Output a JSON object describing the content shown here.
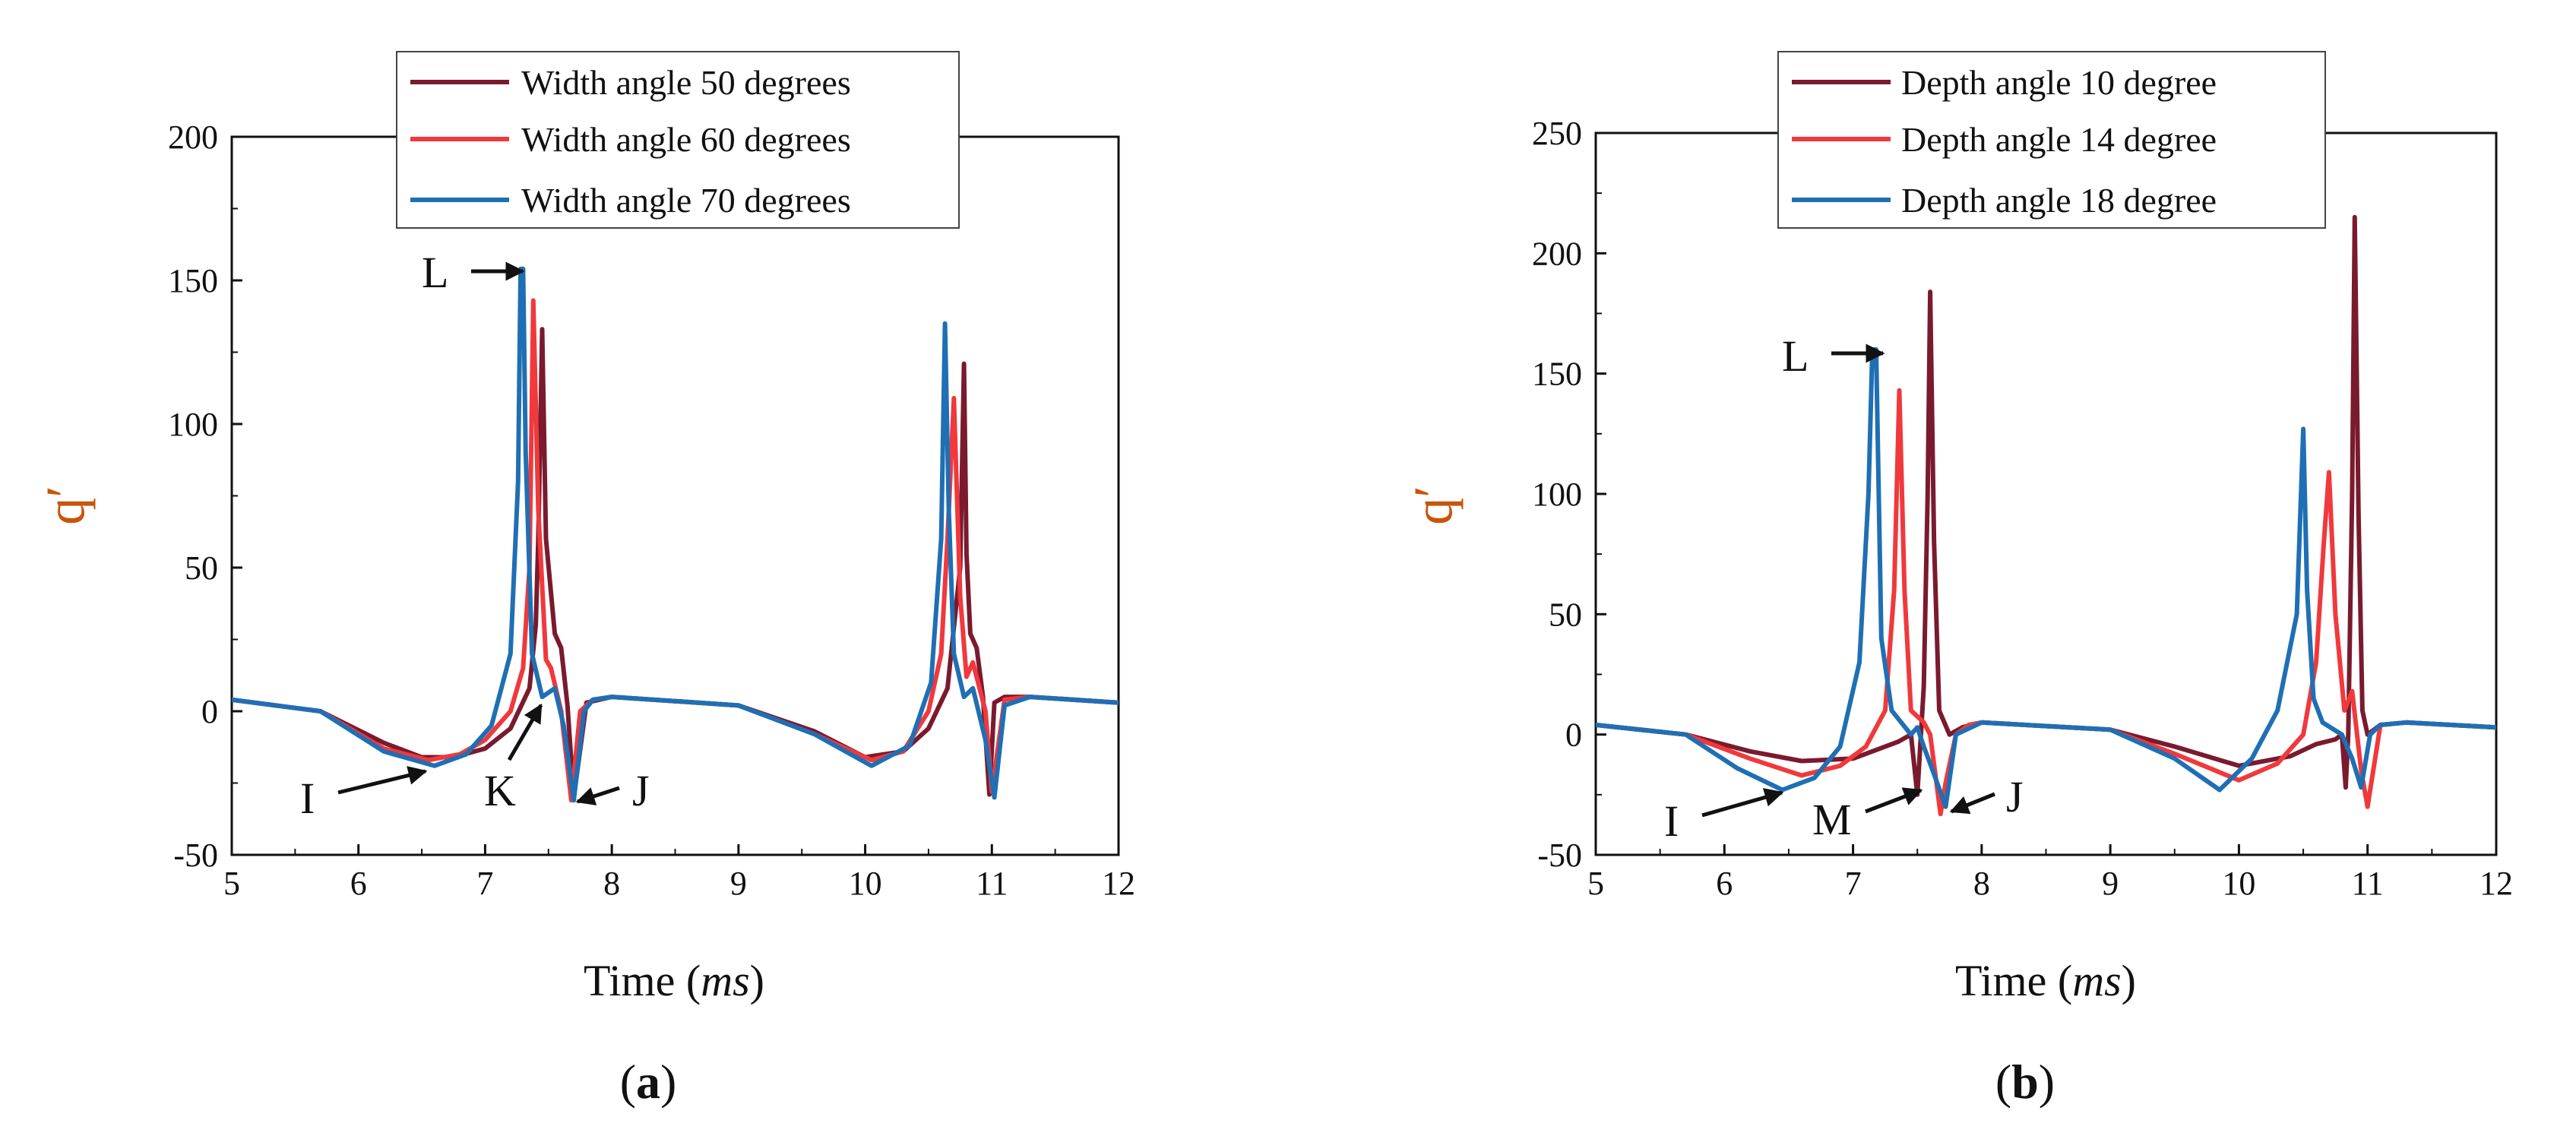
{
  "colors": {
    "dark_red": "#7a1a2e",
    "red": "#f0393c",
    "blue": "#1f6fb4",
    "ylabel": "#c8550a"
  },
  "chart_data": [
    {
      "type": "line",
      "panel_label_open": "(",
      "panel_label_letter": "a",
      "panel_label_close": ")",
      "xlabel_main": "Time (",
      "xlabel_italic": "ms",
      "xlabel_close": ")",
      "ylabel": "q′",
      "xlim": [
        5,
        12
      ],
      "ylim": [
        -50,
        200
      ],
      "xticks": [
        5,
        6,
        7,
        8,
        9,
        10,
        11,
        12
      ],
      "yticks": [
        -50,
        0,
        50,
        100,
        150,
        200
      ],
      "legend_position": "top-center",
      "series": [
        {
          "name": "Width angle 50 degrees",
          "color": "#7a1a2e",
          "x": [
            5,
            5.7,
            6.2,
            6.5,
            6.75,
            7.0,
            7.2,
            7.35,
            7.4,
            7.42,
            7.45,
            7.48,
            7.55,
            7.6,
            7.65,
            7.7,
            7.8,
            8.0,
            9.0,
            9.6,
            10.0,
            10.3,
            10.5,
            10.65,
            10.75,
            10.78,
            10.8,
            10.83,
            10.88,
            10.93,
            10.98,
            11.02,
            11.1,
            11.3,
            12
          ],
          "y": [
            4,
            0,
            -11,
            -16,
            -16,
            -13,
            -6,
            8,
            30,
            60,
            133,
            60,
            27,
            22,
            2,
            -30,
            3,
            5,
            2,
            -7,
            -16,
            -14,
            -6,
            8,
            50,
            121,
            55,
            27,
            22,
            5,
            -29,
            3,
            5,
            5,
            3
          ]
        },
        {
          "name": "Width angle 60 degrees",
          "color": "#f0393c",
          "x": [
            5,
            5.7,
            6.2,
            6.55,
            6.8,
            7.0,
            7.2,
            7.3,
            7.35,
            7.38,
            7.42,
            7.48,
            7.52,
            7.6,
            7.68,
            7.75,
            7.85,
            8.0,
            9.0,
            9.6,
            10.05,
            10.3,
            10.5,
            10.6,
            10.65,
            10.7,
            10.75,
            10.8,
            10.85,
            10.95,
            11.0,
            11.1,
            11.3,
            12
          ],
          "y": [
            4,
            0,
            -13,
            -17,
            -15,
            -10,
            0,
            15,
            50,
            143,
            70,
            18,
            15,
            0,
            -31,
            0,
            4,
            5,
            2,
            -8,
            -17,
            -14,
            0,
            20,
            60,
            109,
            40,
            12,
            17,
            0,
            -28,
            4,
            5,
            3
          ]
        },
        {
          "name": "Width angle 70 degrees",
          "color": "#1f6fb4",
          "x": [
            5,
            5.7,
            6.2,
            6.6,
            6.85,
            7.05,
            7.2,
            7.26,
            7.28,
            7.3,
            7.32,
            7.37,
            7.45,
            7.55,
            7.62,
            7.7,
            7.78,
            7.85,
            8.0,
            9.0,
            9.6,
            10.05,
            10.35,
            10.52,
            10.6,
            10.63,
            10.66,
            10.7,
            10.78,
            10.85,
            10.95,
            11.02,
            11.1,
            11.3,
            12
          ],
          "y": [
            4,
            0,
            -14,
            -19,
            -15,
            -5,
            20,
            80,
            154,
            154,
            90,
            20,
            5,
            8,
            -5,
            -31,
            0,
            4,
            5,
            2,
            -8,
            -19,
            -12,
            10,
            60,
            135,
            70,
            20,
            5,
            8,
            -10,
            -30,
            2,
            5,
            3
          ]
        }
      ],
      "annotations": [
        {
          "label": "L"
        },
        {
          "label": "I"
        },
        {
          "label": "K"
        },
        {
          "label": "J"
        }
      ]
    },
    {
      "type": "line",
      "panel_label_open": "(",
      "panel_label_letter": "b",
      "panel_label_close": ")",
      "xlabel_main": "Time (",
      "xlabel_italic": "ms",
      "xlabel_close": ")",
      "ylabel": "q′",
      "xlim": [
        5,
        12
      ],
      "ylim": [
        -50,
        250
      ],
      "xticks": [
        5,
        6,
        7,
        8,
        9,
        10,
        11,
        12
      ],
      "yticks": [
        -50,
        0,
        50,
        100,
        150,
        200,
        250
      ],
      "legend_position": "top-center",
      "series": [
        {
          "name": "Depth angle 10 degree",
          "color": "#7a1a2e",
          "x": [
            5,
            5.7,
            6.2,
            6.6,
            7.0,
            7.2,
            7.35,
            7.45,
            7.5,
            7.55,
            7.58,
            7.6,
            7.63,
            7.67,
            7.75,
            7.85,
            8.0,
            9.0,
            9.5,
            10.0,
            10.4,
            10.6,
            10.75,
            10.8,
            10.83,
            10.85,
            10.88,
            10.9,
            10.93,
            10.96,
            11.0,
            11.1,
            11.3,
            12
          ],
          "y": [
            4,
            0,
            -7,
            -11,
            -10,
            -6,
            -3,
            0,
            -25,
            20,
            100,
            184,
            80,
            10,
            0,
            3,
            5,
            2,
            -5,
            -13,
            -9,
            -4,
            -2,
            0,
            -22,
            0,
            100,
            215,
            90,
            10,
            0,
            4,
            5,
            3
          ]
        },
        {
          "name": "Depth angle 14 degree",
          "color": "#f0393c",
          "x": [
            5,
            5.7,
            6.2,
            6.6,
            6.9,
            7.1,
            7.25,
            7.32,
            7.36,
            7.4,
            7.45,
            7.55,
            7.6,
            7.68,
            7.72,
            7.8,
            7.9,
            8.0,
            9.0,
            9.5,
            10.0,
            10.3,
            10.5,
            10.6,
            10.66,
            10.7,
            10.75,
            10.82,
            10.88,
            10.95,
            11.0,
            11.1,
            11.3,
            12
          ],
          "y": [
            4,
            0,
            -10,
            -17,
            -13,
            -5,
            10,
            60,
            143,
            60,
            10,
            5,
            0,
            -33,
            -20,
            0,
            4,
            5,
            2,
            -8,
            -19,
            -12,
            0,
            30,
            80,
            109,
            50,
            10,
            18,
            -15,
            -30,
            4,
            5,
            3
          ]
        },
        {
          "name": "Depth angle 18 degree",
          "color": "#1f6fb4",
          "x": [
            5,
            5.7,
            6.1,
            6.45,
            6.7,
            6.9,
            7.05,
            7.12,
            7.15,
            7.18,
            7.22,
            7.3,
            7.45,
            7.5,
            7.55,
            7.62,
            7.72,
            7.8,
            8.0,
            9.0,
            9.5,
            9.85,
            10.1,
            10.3,
            10.45,
            10.5,
            10.53,
            10.58,
            10.65,
            10.8,
            10.88,
            10.95,
            11.02,
            11.1,
            11.3,
            12
          ],
          "y": [
            4,
            0,
            -14,
            -23,
            -18,
            -5,
            30,
            100,
            160,
            160,
            40,
            10,
            0,
            3,
            -5,
            -15,
            -30,
            0,
            5,
            2,
            -10,
            -23,
            -10,
            10,
            50,
            127,
            60,
            15,
            5,
            0,
            -10,
            -22,
            0,
            4,
            5,
            3
          ]
        }
      ],
      "annotations": [
        {
          "label": "L"
        },
        {
          "label": "I"
        },
        {
          "label": "M"
        },
        {
          "label": "J"
        }
      ]
    }
  ]
}
